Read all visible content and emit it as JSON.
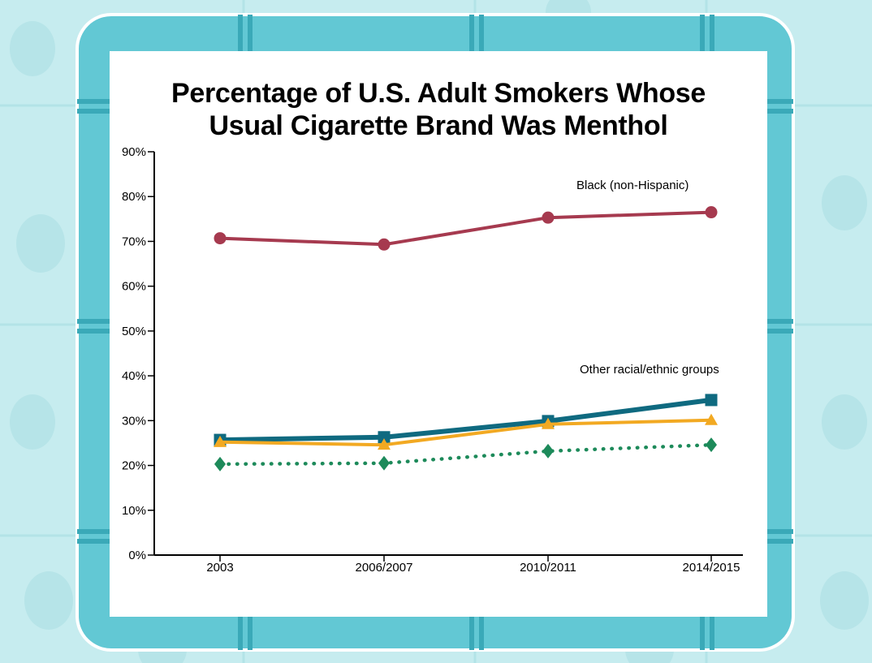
{
  "colors": {
    "background": "#c6ecef",
    "frame": "#62c8d4",
    "frame_stripe": "#3aa9b8",
    "card": "#ffffff",
    "black_series": "#a63a4f",
    "series_2": "#0f6a80",
    "series_3": "#f2a922",
    "series_4": "#1d8a5a"
  },
  "chart_data": {
    "type": "line",
    "title_lines": [
      "Percentage of U.S. Adult Smokers Whose",
      "Usual Cigarette Brand Was Menthol"
    ],
    "categories": [
      "2003",
      "2006/2007",
      "2010/2011",
      "2014/2015"
    ],
    "ylim": [
      0,
      90
    ],
    "yticks": [
      "0%",
      "10%",
      "20%",
      "30%",
      "40%",
      "50%",
      "60%",
      "70%",
      "80%",
      "90%"
    ],
    "grid": false,
    "annotations": {
      "black": "Black (non-Hispanic)",
      "others": "Other racial/ethnic groups"
    },
    "series": [
      {
        "values": [
          70.7,
          69.3,
          75.3,
          76.5
        ],
        "color": "#a63a4f",
        "marker": "circle",
        "style": "solid"
      },
      {
        "values": [
          25.7,
          26.3,
          29.9,
          34.6
        ],
        "color": "#0f6a80",
        "marker": "square",
        "style": "solid"
      },
      {
        "values": [
          25.2,
          24.6,
          29.2,
          30.1
        ],
        "color": "#f2a922",
        "marker": "triangle",
        "style": "solid"
      },
      {
        "values": [
          20.3,
          20.5,
          23.2,
          24.6
        ],
        "color": "#1d8a5a",
        "marker": "diamond",
        "style": "dotted"
      }
    ]
  }
}
